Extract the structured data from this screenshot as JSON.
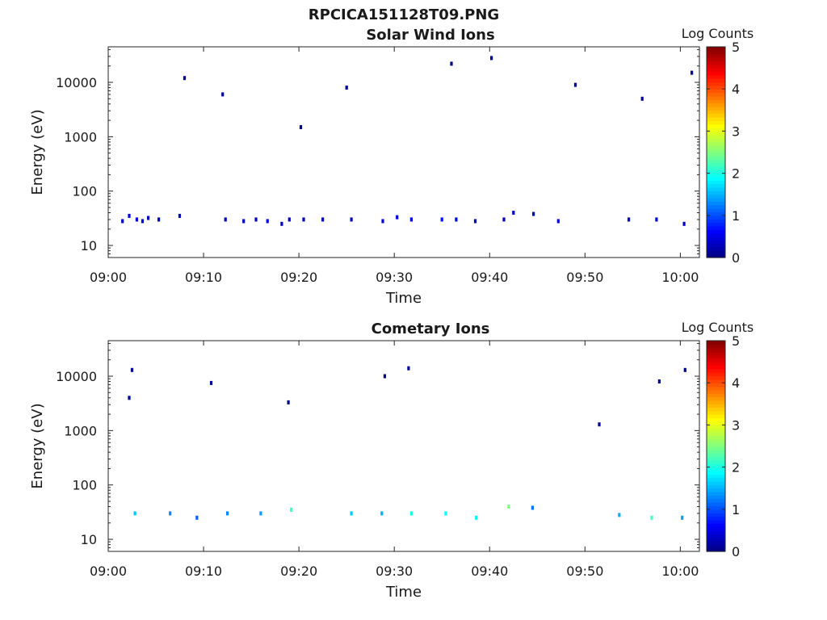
{
  "figure": {
    "title": "RPCICA151128T09.PNG"
  },
  "colors": {
    "jet": [
      "#00007f",
      "#0000ff",
      "#007fff",
      "#00ffff",
      "#7fff7f",
      "#ffff00",
      "#ff7f00",
      "#ff0000",
      "#7f0000"
    ]
  },
  "chart_data": [
    {
      "type": "heatmap",
      "title": "Solar Wind Ions",
      "xlabel": "Time",
      "ylabel": "Energy (eV)",
      "x_ticks": [
        "09:00",
        "09:10",
        "09:20",
        "09:30",
        "09:40",
        "09:50",
        "10:00"
      ],
      "x_tick_minutes": [
        0,
        10,
        20,
        30,
        40,
        50,
        60
      ],
      "xlim_minutes": [
        0,
        62
      ],
      "y_scale": "log",
      "y_ticks": [
        "10",
        "100",
        "1000",
        "10000"
      ],
      "y_tick_values": [
        10,
        100,
        1000,
        10000
      ],
      "ylim": [
        6,
        45000
      ],
      "colorbar": {
        "label": "Log Counts",
        "ticks": [
          "0",
          "1",
          "2",
          "3",
          "4",
          "5"
        ],
        "range": [
          0,
          5
        ],
        "colormap": "jet"
      },
      "cells": [
        [
          1.5,
          28,
          0.3
        ],
        [
          2.2,
          35,
          0.5
        ],
        [
          3.0,
          30,
          0.4
        ],
        [
          3.6,
          28,
          0.5
        ],
        [
          4.2,
          32,
          0.3
        ],
        [
          5.3,
          30,
          0.3
        ],
        [
          7.5,
          35,
          0.4
        ],
        [
          12.3,
          30,
          0.3
        ],
        [
          14.2,
          28,
          0.3
        ],
        [
          15.5,
          30,
          0.3
        ],
        [
          16.7,
          28,
          0.4
        ],
        [
          18.2,
          25,
          0.3
        ],
        [
          19.0,
          30,
          0.3
        ],
        [
          20.5,
          30,
          0.3
        ],
        [
          22.5,
          30,
          0.3
        ],
        [
          25.5,
          30,
          0.3
        ],
        [
          28.8,
          28,
          0.4
        ],
        [
          30.3,
          33,
          0.4
        ],
        [
          31.8,
          30,
          0.4
        ],
        [
          35.0,
          30,
          0.7
        ],
        [
          36.5,
          30,
          0.5
        ],
        [
          38.5,
          28,
          0.3
        ],
        [
          41.5,
          30,
          0.3
        ],
        [
          42.5,
          40,
          0.4
        ],
        [
          44.6,
          38,
          0.3
        ],
        [
          47.2,
          28,
          0.4
        ],
        [
          54.6,
          30,
          0.3
        ],
        [
          57.5,
          30,
          0.4
        ],
        [
          60.4,
          25,
          0.3
        ],
        [
          8.0,
          12000,
          0.1
        ],
        [
          12.0,
          6000,
          0.1
        ],
        [
          20.2,
          1500,
          0.1
        ],
        [
          25.0,
          8000,
          0.1
        ],
        [
          36.0,
          22000,
          0.1
        ],
        [
          40.2,
          28000,
          0.1
        ],
        [
          49.0,
          9000,
          0.1
        ],
        [
          56.0,
          5000,
          0.1
        ],
        [
          61.2,
          15000,
          0.1
        ]
      ]
    },
    {
      "type": "heatmap",
      "title": "Cometary Ions",
      "xlabel": "Time",
      "ylabel": "Energy (eV)",
      "x_ticks": [
        "09:00",
        "09:10",
        "09:20",
        "09:30",
        "09:40",
        "09:50",
        "10:00"
      ],
      "x_tick_minutes": [
        0,
        10,
        20,
        30,
        40,
        50,
        60
      ],
      "xlim_minutes": [
        0,
        62
      ],
      "y_scale": "log",
      "y_ticks": [
        "10",
        "100",
        "1000",
        "10000"
      ],
      "y_tick_values": [
        10,
        100,
        1000,
        10000
      ],
      "ylim": [
        6,
        45000
      ],
      "colorbar": {
        "label": "Log Counts",
        "ticks": [
          "0",
          "1",
          "2",
          "3",
          "4",
          "5"
        ],
        "range": [
          0,
          5
        ],
        "colormap": "jet"
      },
      "cells": [
        [
          2.8,
          30,
          1.6
        ],
        [
          6.5,
          30,
          1.3
        ],
        [
          9.3,
          25,
          1.1
        ],
        [
          12.5,
          30,
          1.3
        ],
        [
          16.0,
          30,
          1.4
        ],
        [
          19.2,
          35,
          2.2
        ],
        [
          25.5,
          30,
          1.6
        ],
        [
          28.7,
          30,
          1.5
        ],
        [
          31.8,
          30,
          2.0
        ],
        [
          35.4,
          30,
          1.9
        ],
        [
          38.6,
          25,
          1.8
        ],
        [
          42.0,
          40,
          2.5
        ],
        [
          44.5,
          38,
          1.2
        ],
        [
          53.6,
          28,
          1.5
        ],
        [
          57.0,
          25,
          2.2
        ],
        [
          60.2,
          25,
          1.4
        ],
        [
          2.5,
          13000,
          0.1
        ],
        [
          2.2,
          4000,
          0.1
        ],
        [
          10.8,
          7500,
          0.1
        ],
        [
          18.9,
          3300,
          0.1
        ],
        [
          29.0,
          10000,
          0.1
        ],
        [
          31.5,
          14000,
          0.1
        ],
        [
          51.5,
          1300,
          0.1
        ],
        [
          57.8,
          8000,
          0.1
        ],
        [
          60.5,
          13000,
          0.1
        ]
      ]
    }
  ]
}
